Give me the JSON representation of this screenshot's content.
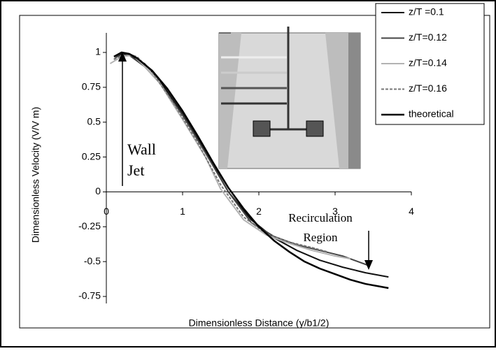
{
  "chart_data": {
    "type": "line",
    "xlabel": "Dimensionless Distance (y/b1/2)",
    "ylabel": "Dimensionless Velocity (V/V m)",
    "xlim": [
      0,
      4
    ],
    "xticks": [
      0,
      1,
      2,
      3,
      4
    ],
    "ylim": [
      -0.75,
      1
    ],
    "yticks": [
      -0.75,
      -0.5,
      -0.25,
      0,
      0.25,
      0.5,
      0.75,
      1
    ],
    "annotations": [
      "Wall",
      "Jet",
      "Recirculation",
      "Region"
    ],
    "series": [
      {
        "name": "z/T =0.1",
        "color": "#111111",
        "width": 2,
        "dash": "none",
        "x": [
          0.15,
          0.2,
          0.3,
          0.5,
          0.7,
          1.0,
          1.3,
          1.6,
          1.9,
          2.2,
          2.5,
          2.8,
          3.1,
          3.4,
          3.7
        ],
        "values": [
          0.97,
          0.99,
          0.98,
          0.92,
          0.8,
          0.56,
          0.29,
          0.0,
          -0.2,
          -0.33,
          -0.42,
          -0.49,
          -0.54,
          -0.58,
          -0.61
        ]
      },
      {
        "name": "z/T=0.12",
        "color": "#444444",
        "width": 2,
        "dash": "none",
        "x": [
          0.1,
          0.2,
          0.3,
          0.5,
          0.7,
          1.0,
          1.3,
          1.6,
          1.9,
          2.2,
          2.5,
          2.8,
          3.1,
          3.45
        ],
        "values": [
          0.95,
          1.0,
          0.98,
          0.9,
          0.78,
          0.55,
          0.28,
          0.0,
          -0.22,
          -0.32,
          -0.38,
          -0.42,
          -0.46,
          -0.53
        ]
      },
      {
        "name": "z/T=0.14",
        "color": "#b3b3b3",
        "width": 2,
        "dash": "none",
        "x": [
          0.05,
          0.2,
          0.35,
          0.5,
          0.7,
          1.0,
          1.3,
          1.5,
          1.8,
          2.1,
          2.4,
          2.7,
          3.0,
          3.2
        ],
        "values": [
          0.92,
          0.97,
          0.98,
          0.9,
          0.78,
          0.52,
          0.25,
          0.02,
          -0.2,
          -0.31,
          -0.37,
          -0.42,
          -0.46,
          -0.48
        ]
      },
      {
        "name": "z/T=0.16",
        "color": "#777777",
        "width": 2,
        "dash": "4 2",
        "x": [
          0.1,
          0.25,
          0.4,
          0.6,
          0.9,
          1.2,
          1.5,
          1.8,
          2.1,
          2.4,
          2.7,
          2.9
        ],
        "values": [
          0.95,
          0.99,
          0.97,
          0.86,
          0.62,
          0.35,
          0.05,
          -0.18,
          -0.3,
          -0.36,
          -0.4,
          -0.43
        ]
      },
      {
        "name": "theoretical",
        "color": "#000000",
        "width": 2.5,
        "dash": "none",
        "x": [
          0.1,
          0.2,
          0.3,
          0.4,
          0.6,
          0.8,
          1.0,
          1.2,
          1.4,
          1.6,
          1.8,
          2.0,
          2.2,
          2.4,
          2.6,
          2.8,
          3.0,
          3.2,
          3.4,
          3.6,
          3.7
        ],
        "values": [
          0.97,
          1.0,
          0.99,
          0.96,
          0.87,
          0.74,
          0.58,
          0.4,
          0.21,
          0.03,
          -0.12,
          -0.25,
          -0.35,
          -0.43,
          -0.5,
          -0.55,
          -0.59,
          -0.63,
          -0.66,
          -0.68,
          -0.69
        ]
      }
    ]
  }
}
